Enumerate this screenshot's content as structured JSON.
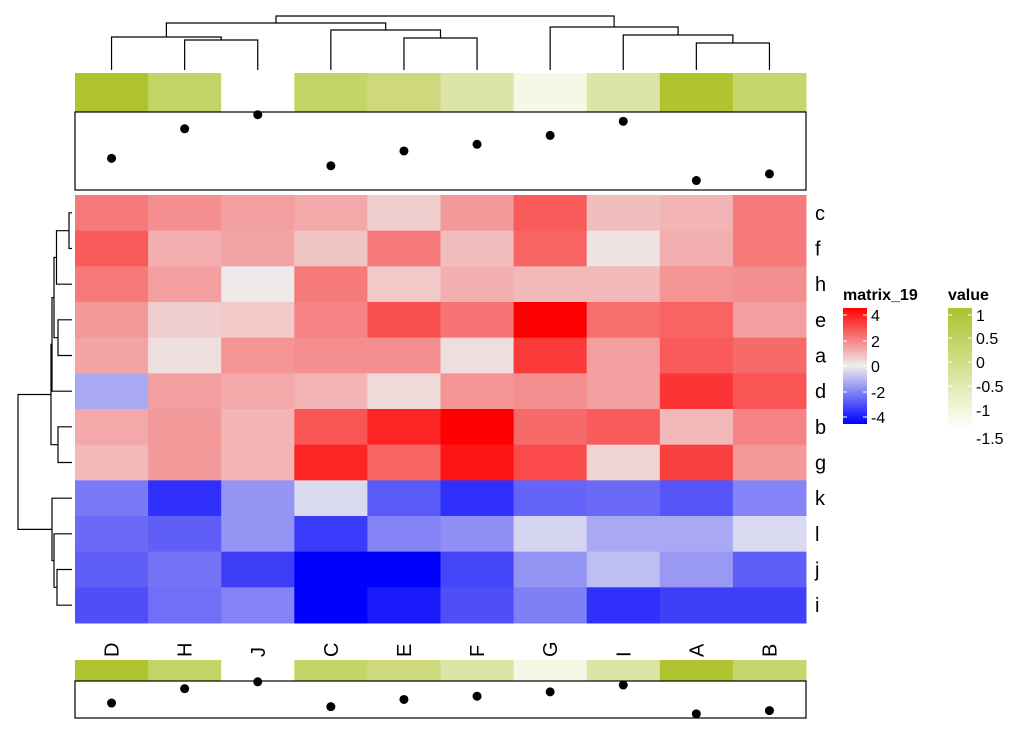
{
  "chart_data": {
    "type": "heatmap",
    "columns": [
      "D",
      "H",
      "J",
      "C",
      "E",
      "F",
      "G",
      "I",
      "A",
      "B"
    ],
    "rows": [
      "c",
      "f",
      "h",
      "e",
      "a",
      "d",
      "b",
      "g",
      "k",
      "l",
      "j",
      "i"
    ],
    "values": [
      [
        2.2,
        1.8,
        1.5,
        1.3,
        0.6,
        1.6,
        2.8,
        0.9,
        1.1,
        2.2
      ],
      [
        2.8,
        1.2,
        1.4,
        0.8,
        2.2,
        0.9,
        2.6,
        0.2,
        1.2,
        2.2
      ],
      [
        2.2,
        1.5,
        0.1,
        2.2,
        0.7,
        1.2,
        1.0,
        1.0,
        1.7,
        1.8
      ],
      [
        1.6,
        0.6,
        0.7,
        2.0,
        3.0,
        2.3,
        4.5,
        2.4,
        2.6,
        1.5
      ],
      [
        1.4,
        0.3,
        1.7,
        1.8,
        1.8,
        0.3,
        3.4,
        1.5,
        2.8,
        2.5
      ],
      [
        -1.3,
        1.5,
        1.3,
        1.1,
        0.4,
        1.7,
        1.8,
        1.5,
        3.5,
        2.9
      ],
      [
        1.3,
        1.6,
        1.1,
        2.9,
        3.8,
        4.5,
        2.5,
        2.8,
        1.0,
        2.0
      ],
      [
        1.0,
        1.6,
        1.1,
        3.8,
        2.6,
        4.1,
        3.1,
        0.5,
        3.3,
        1.6
      ],
      [
        -2.2,
        -3.6,
        -1.7,
        -0.4,
        -2.8,
        -3.6,
        -2.6,
        -2.5,
        -2.9,
        -2.0
      ],
      [
        -2.5,
        -2.7,
        -1.7,
        -3.4,
        -2.0,
        -1.8,
        -0.5,
        -1.3,
        -1.3,
        -0.4
      ],
      [
        -2.7,
        -2.3,
        -3.3,
        -4.5,
        -4.5,
        -3.2,
        -1.7,
        -0.9,
        -1.6,
        -2.7
      ],
      [
        -3.0,
        -2.4,
        -2.0,
        -4.5,
        -4.0,
        -3.0,
        -2.1,
        -3.6,
        -3.3,
        -3.3
      ]
    ],
    "color_scale": {
      "min": -4.5,
      "mid": 0,
      "max": 4.5,
      "low_color": "#0000FF",
      "mid_color": "#EEEEEE",
      "high_color": "#FF0000"
    },
    "column_annotation_value": [
      1.05,
      0.35,
      null,
      0.35,
      0.1,
      -0.4,
      -1.2,
      -0.4,
      1.0,
      0.3
    ],
    "column_annotation_value_colors": {
      "high": "#ADC22A",
      "low": "#FFFFFF",
      "na": "#FFFFFF"
    },
    "column_annotation_points": [
      0.36,
      0.76,
      0.95,
      0.26,
      0.46,
      0.55,
      0.67,
      0.86,
      0.06,
      0.15
    ],
    "legends": [
      {
        "title": "matrix_19",
        "ticks": [
          "4",
          "2",
          "0",
          "-2",
          "-4"
        ]
      },
      {
        "title": "value",
        "ticks": [
          "1",
          "0.5",
          "0",
          "-0.5",
          "-1",
          "-1.5"
        ]
      }
    ],
    "row_dendrogram": true,
    "column_dendrogram": true
  }
}
